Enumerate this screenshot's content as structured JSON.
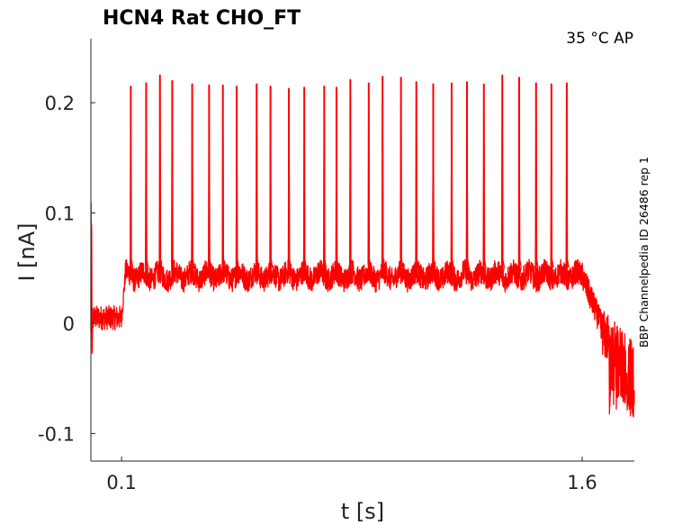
{
  "chart_data": {
    "type": "line",
    "title": "HCN4  Rat  CHO_FT",
    "condition_label": "35 °C  AP",
    "side_label": "BBP Channelpedia ID 26486 rep 1",
    "xlabel": "t [s]",
    "ylabel": "I [nA]",
    "xlim": [
      0.0,
      1.77
    ],
    "ylim": [
      -0.125,
      0.258
    ],
    "x_ticks": [
      0.1,
      1.6
    ],
    "x_tick_labels": [
      "0.1",
      "1.6"
    ],
    "y_ticks": [
      -0.1,
      0,
      0.1,
      0.2
    ],
    "y_tick_labels": [
      "-0.1",
      "0",
      "0.1",
      "0.2"
    ],
    "grid": false,
    "series": [
      {
        "color": "#ff0000",
        "baseline_before": 0.005,
        "step_start": 0.1,
        "plateau": 0.043,
        "step_end": 1.6,
        "spike_times": [
          0.13,
          0.18,
          0.225,
          0.265,
          0.33,
          0.385,
          0.43,
          0.475,
          0.54,
          0.585,
          0.645,
          0.695,
          0.76,
          0.8,
          0.845,
          0.905,
          0.95,
          1.01,
          1.06,
          1.115,
          1.175,
          1.225,
          1.28,
          1.34,
          1.395,
          1.45,
          1.5,
          1.55
        ],
        "spike_peaks": [
          0.215,
          0.218,
          0.225,
          0.22,
          0.217,
          0.216,
          0.216,
          0.215,
          0.217,
          0.215,
          0.213,
          0.214,
          0.215,
          0.214,
          0.221,
          0.218,
          0.224,
          0.223,
          0.219,
          0.217,
          0.218,
          0.219,
          0.217,
          0.225,
          0.223,
          0.218,
          0.217,
          0.218
        ],
        "tail_min": -0.09
      }
    ]
  }
}
